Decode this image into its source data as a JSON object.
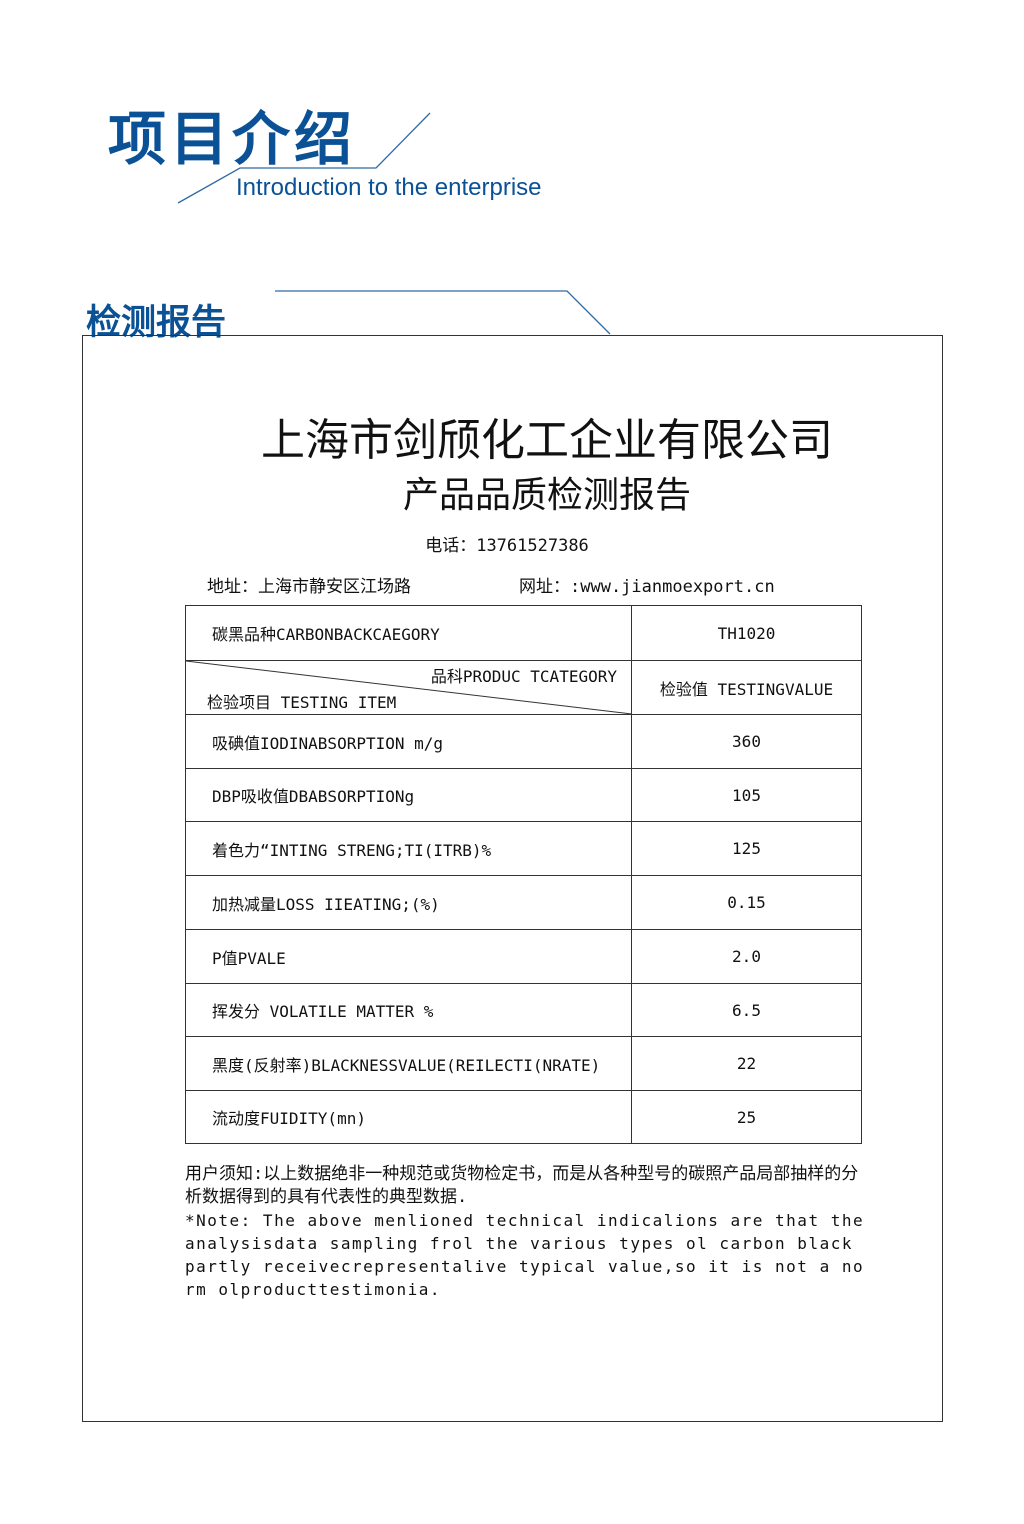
{
  "header": {
    "title_cn": "项目介绍",
    "title_en": "Introduction to the enterprise",
    "section": "检测报告",
    "accent": "#0a5196"
  },
  "report": {
    "company": "上海市剑颀化工企业有限公司",
    "subtitle": "产品品质检测报告",
    "phone": "电话：13761527386",
    "address": "地址：上海市静安区江场路",
    "website": "网址：:www.jianmoexport.cn",
    "category_label": "碳黑品种CARBONBACKCAEGORY",
    "category_value": "TH1020",
    "head_top": "品科PRODUC TCATEGORY",
    "head_bottom": "检验项目 TESTING ITEM",
    "head_value": "检验值 TESTINGVALUE",
    "rows": [
      {
        "item": "吸碘值IODINABSORPTION m/g",
        "value": "360"
      },
      {
        "item": "DBP吸收值DBABSORPTIONg",
        "value": "105"
      },
      {
        "item": "着色力“INTING STRENG;TI(ITRB)%",
        "value": "125"
      },
      {
        "item": "加热减量LOSS IIEATING;(%)",
        "value": "0.15"
      },
      {
        "item": "P值PVALE",
        "value": "2.0"
      },
      {
        "item": "挥发分 VOLATILE MATTER %",
        "value": "6.5"
      },
      {
        "item": "黑度(反射率)BLACKNESSVALUE(REILECTI(NRATE)",
        "value": "22"
      },
      {
        "item": "流动度FUIDITY(mn)",
        "value": "25"
      }
    ],
    "note_cn": "用户须知:以上数据绝非一种规范或货物检定书，而是从各种型号的碳照产品局部抽样的分析数据得到的具有代表性的典型数据.",
    "note_en": "*Note: The above menlioned technical indicalions are that the analysisdata sampling frol the various types ol carbon black partly receivecrepresentalive typical value,so it is not a norm olproducttestimonia."
  }
}
